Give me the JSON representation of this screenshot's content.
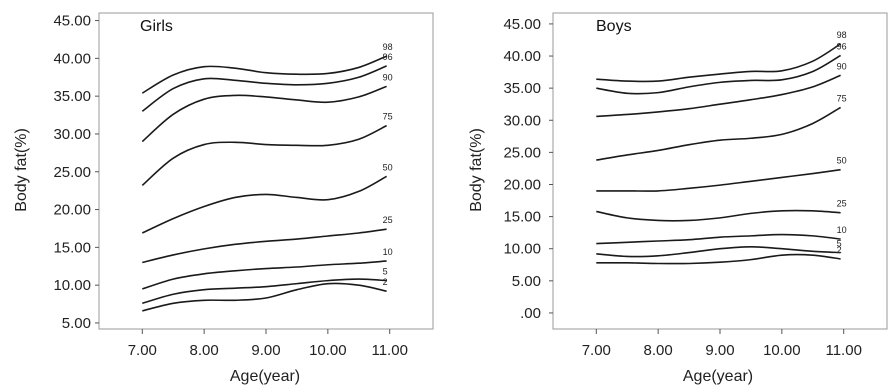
{
  "chart_data": [
    {
      "type": "line",
      "title": "Girls",
      "xlabel": "Age(year)",
      "ylabel": "Body fat(%)",
      "x_ticks": [
        "7.00",
        "8.00",
        "9.00",
        "10.00",
        "11.00"
      ],
      "y_ticks": [
        "5.00",
        "10.00",
        "15.00",
        "20.00",
        "25.00",
        "30.00",
        "35.00",
        "40.00",
        "45.00"
      ],
      "xlim": [
        6.3,
        11.7
      ],
      "ylim": [
        4.2,
        46.0
      ],
      "x": [
        7.0,
        7.5,
        8.0,
        8.5,
        9.0,
        9.5,
        10.0,
        10.5,
        10.95
      ],
      "series": [
        {
          "name": "98",
          "values": [
            35.4,
            37.8,
            38.9,
            38.7,
            38.1,
            37.9,
            38.0,
            38.8,
            40.3
          ]
        },
        {
          "name": "96",
          "values": [
            33.0,
            36.0,
            37.3,
            37.1,
            36.7,
            36.5,
            36.7,
            37.5,
            39.0
          ]
        },
        {
          "name": "90",
          "values": [
            29.0,
            32.6,
            34.6,
            35.1,
            34.9,
            34.5,
            34.2,
            34.9,
            36.3
          ]
        },
        {
          "name": "75",
          "values": [
            23.2,
            26.8,
            28.6,
            28.9,
            28.6,
            28.5,
            28.5,
            29.3,
            31.1
          ]
        },
        {
          "name": "50",
          "values": [
            16.9,
            18.8,
            20.4,
            21.6,
            22.0,
            21.6,
            21.3,
            22.4,
            24.4
          ]
        },
        {
          "name": "25",
          "values": [
            13.0,
            14.0,
            14.8,
            15.4,
            15.8,
            16.1,
            16.5,
            16.9,
            17.4
          ]
        },
        {
          "name": "10",
          "values": [
            9.5,
            10.8,
            11.5,
            11.9,
            12.2,
            12.4,
            12.7,
            12.9,
            13.2
          ]
        },
        {
          "name": "5",
          "values": [
            7.6,
            8.8,
            9.4,
            9.6,
            9.8,
            10.2,
            10.6,
            10.8,
            10.6
          ]
        },
        {
          "name": "2",
          "values": [
            6.6,
            7.6,
            8.0,
            8.0,
            8.3,
            9.4,
            10.2,
            10.0,
            9.2
          ]
        }
      ]
    },
    {
      "type": "line",
      "title": "Boys",
      "xlabel": "Age(year)",
      "ylabel": "Body fat(%)",
      "x_ticks": [
        "7.00",
        "8.00",
        "9.00",
        "10.00",
        "11.00"
      ],
      "y_ticks": [
        ".00",
        "5.00",
        "10.00",
        "15.00",
        "20.00",
        "25.00",
        "30.00",
        "35.00",
        "40.00",
        "45.00"
      ],
      "xlim": [
        6.3,
        11.7
      ],
      "ylim": [
        -2.5,
        46.7
      ],
      "x": [
        7.0,
        7.5,
        8.0,
        8.5,
        9.0,
        9.5,
        10.0,
        10.5,
        10.95
      ],
      "series": [
        {
          "name": "98",
          "values": [
            36.4,
            36.1,
            36.1,
            36.7,
            37.2,
            37.6,
            37.7,
            39.2,
            41.9
          ]
        },
        {
          "name": "96",
          "values": [
            35.0,
            34.2,
            34.3,
            35.2,
            35.9,
            36.2,
            36.3,
            37.6,
            40.1
          ]
        },
        {
          "name": "90",
          "values": [
            30.6,
            30.9,
            31.3,
            31.8,
            32.5,
            33.2,
            34.0,
            35.2,
            37.0
          ]
        },
        {
          "name": "75",
          "values": [
            23.8,
            24.6,
            25.3,
            26.2,
            26.9,
            27.2,
            27.8,
            29.5,
            32.0
          ]
        },
        {
          "name": "50",
          "values": [
            19.0,
            19.0,
            19.0,
            19.4,
            19.9,
            20.5,
            21.1,
            21.7,
            22.3
          ]
        },
        {
          "name": "25",
          "values": [
            15.8,
            14.8,
            14.4,
            14.4,
            14.8,
            15.5,
            15.9,
            15.9,
            15.6
          ]
        },
        {
          "name": "10",
          "values": [
            10.8,
            11.0,
            11.2,
            11.4,
            11.8,
            12.0,
            12.2,
            12.0,
            11.5
          ]
        },
        {
          "name": "5",
          "values": [
            9.2,
            8.8,
            8.9,
            9.4,
            10.0,
            10.3,
            10.0,
            9.6,
            9.4
          ]
        },
        {
          "name": "2",
          "values": [
            7.8,
            7.8,
            7.7,
            7.7,
            7.9,
            8.3,
            9.0,
            9.0,
            8.4
          ]
        }
      ]
    }
  ]
}
